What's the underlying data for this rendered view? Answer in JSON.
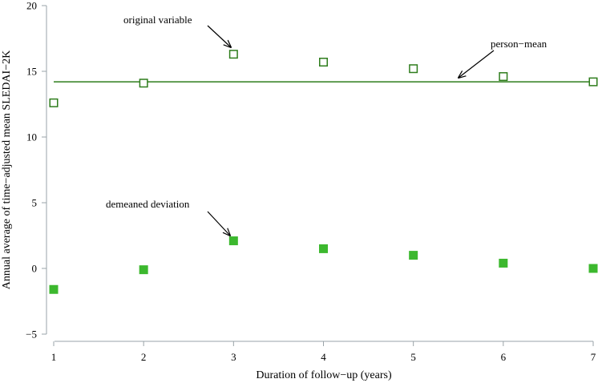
{
  "chart_data": {
    "type": "scatter",
    "xlabel": "Duration of follow−up (years)",
    "ylabel": "Annual average of time−adjusted mean SLEDAI−2K",
    "xlim": [
      1,
      7
    ],
    "ylim": [
      -5,
      20
    ],
    "xticks": [
      "1",
      "2",
      "3",
      "4",
      "5",
      "6",
      "7"
    ],
    "yticks": [
      "−5",
      "0",
      "5",
      "10",
      "15",
      "20"
    ],
    "series": [
      {
        "marker": "open-square",
        "color": "#2e7d1c",
        "x": [
          1,
          2,
          3,
          4,
          5,
          6,
          7
        ],
        "y": [
          12.6,
          14.1,
          16.3,
          15.7,
          15.2,
          14.6,
          14.2
        ]
      },
      {
        "marker": "filled-square",
        "color": "#3cb82e",
        "x": [
          1,
          2,
          3,
          4,
          5,
          6,
          7
        ],
        "y": [
          -1.6,
          -0.1,
          2.1,
          1.5,
          1.0,
          0.4,
          0.0
        ]
      }
    ],
    "reference_line": {
      "y": 14.2,
      "color": "#2e7d1c"
    },
    "annotations": [
      {
        "text": "original variable",
        "target": {
          "x": 3,
          "y": 16.3
        }
      },
      {
        "text": "person−mean",
        "target": {
          "x": 5.5,
          "y": 14.2
        }
      },
      {
        "text": "demeaned deviation",
        "target": {
          "x": 3,
          "y": 2.1
        }
      }
    ],
    "grid": false,
    "legend": "none"
  }
}
